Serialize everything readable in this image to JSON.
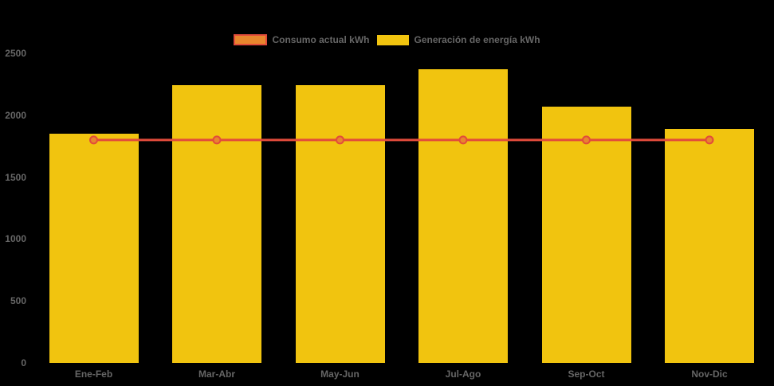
{
  "background_color": "#000000",
  "legend": {
    "position": "top",
    "items": [
      {
        "label": "Consumo actual kWh",
        "swatch_fill": "#E8862D",
        "swatch_border": "#E24B3B"
      },
      {
        "label": "Generación de energía kWh",
        "swatch_fill": "#F1C40F",
        "swatch_border": "#F1C40F"
      }
    ]
  },
  "chart_data": {
    "type": "bar",
    "title": "",
    "xlabel": "",
    "ylabel": "",
    "categories": [
      "Ene-Feb",
      "Mar-Abr",
      "May-Jun",
      "Jul-Ago",
      "Sep-Oct",
      "Nov-Dic"
    ],
    "series": [
      {
        "name": "Consumo actual kWh",
        "type": "line",
        "color": "#E24B3B",
        "point_fill": "#E8862D",
        "point_border": "#E24B3B",
        "values": [
          1800,
          1800,
          1800,
          1800,
          1800,
          1800
        ]
      },
      {
        "name": "Generación de energía kWh",
        "type": "bar",
        "color": "#F1C40F",
        "values": [
          1850,
          2240,
          2240,
          2370,
          2070,
          1890
        ]
      }
    ],
    "ylim": [
      0,
      2500
    ],
    "yticks": [
      0,
      500,
      1000,
      1500,
      2000,
      2500
    ],
    "grid": false,
    "legend_position": "top",
    "axis_text_color": "#666666"
  }
}
